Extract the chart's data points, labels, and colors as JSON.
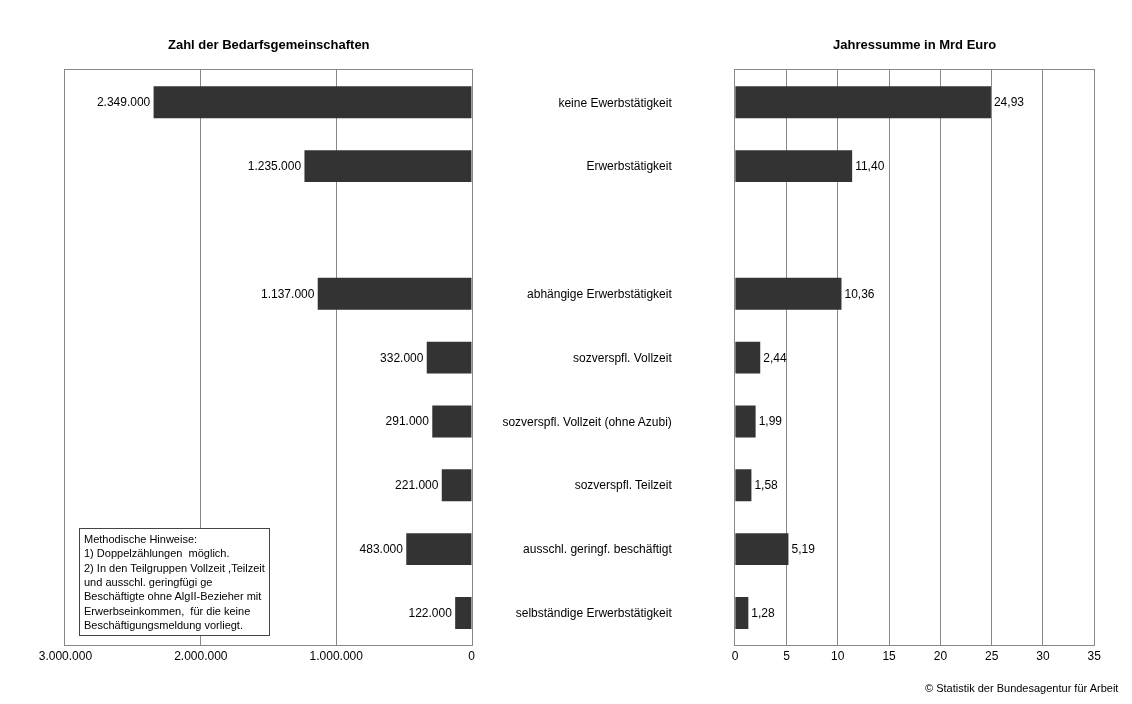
{
  "chart_data": [
    {
      "type": "bar",
      "orientation": "horizontal",
      "title": "Zahl der Bedarfsgemeinschaften",
      "categories": [
        null,
        null,
        null,
        null,
        null,
        null,
        null,
        null,
        null
      ],
      "values": [
        2349000,
        1235000,
        null,
        1137000,
        332000,
        291000,
        221000,
        483000,
        122000
      ],
      "value_labels": [
        "2.349.000",
        "1.235.000",
        null,
        "1.137.000",
        "332.000",
        "291.000",
        "221.000",
        "483.000",
        "122.000"
      ],
      "color": "#333333",
      "xlim": [
        3000000,
        0
      ],
      "xticks": [
        {
          "value": 3000000,
          "label": "3.000.000"
        },
        {
          "value": 2000000,
          "label": "2.000.000"
        },
        {
          "value": 1000000,
          "label": "1.000.000"
        },
        0
      ],
      "grid": "x",
      "tick_labels": "x",
      "annotations": [
        "Methodische Hinweise:\n1) Doppelzählungen  möglich.\n2) In den Teilgruppen Vollzeit ,Teilzeit\nund ausschl. geringfügi ge\nBeschäftigte ohne AlgII-Bezieher mit\nErwerbseinkommen,  für die keine\nBeschäftigungsmeldung vorliegt."
      ]
    },
    {
      "type": "bar",
      "orientation": "horizontal",
      "title": "Jahressumme in Mrd Euro",
      "categories": [
        "keine Ewerbstätigkeit",
        "Erwerbstätigkeit",
        null,
        "abhängige Erwerbstätigkeit",
        "sozverspfl. Vollzeit",
        "sozverspfl. Vollzeit (ohne Azubi)",
        "sozverspfl. Teilzeit",
        "ausschl. geringf. beschäftigt",
        "selbständige Erwerbstätigkeit"
      ],
      "values": [
        24.93,
        11.4,
        null,
        10.36,
        2.44,
        1.99,
        1.58,
        5.19,
        1.28
      ],
      "value_labels": [
        "24,93",
        "11,40",
        null,
        "10,36",
        "2,44",
        "1,99",
        "1,58",
        "5,19",
        "1,28"
      ],
      "color": "#333333",
      "xlim": [
        0,
        35
      ],
      "xticks": [
        0,
        5,
        10,
        15,
        20,
        25,
        30,
        35
      ],
      "grid": "x",
      "annotations": [
        "© Statistik der Bundesagentur für Arbeit"
      ]
    }
  ]
}
